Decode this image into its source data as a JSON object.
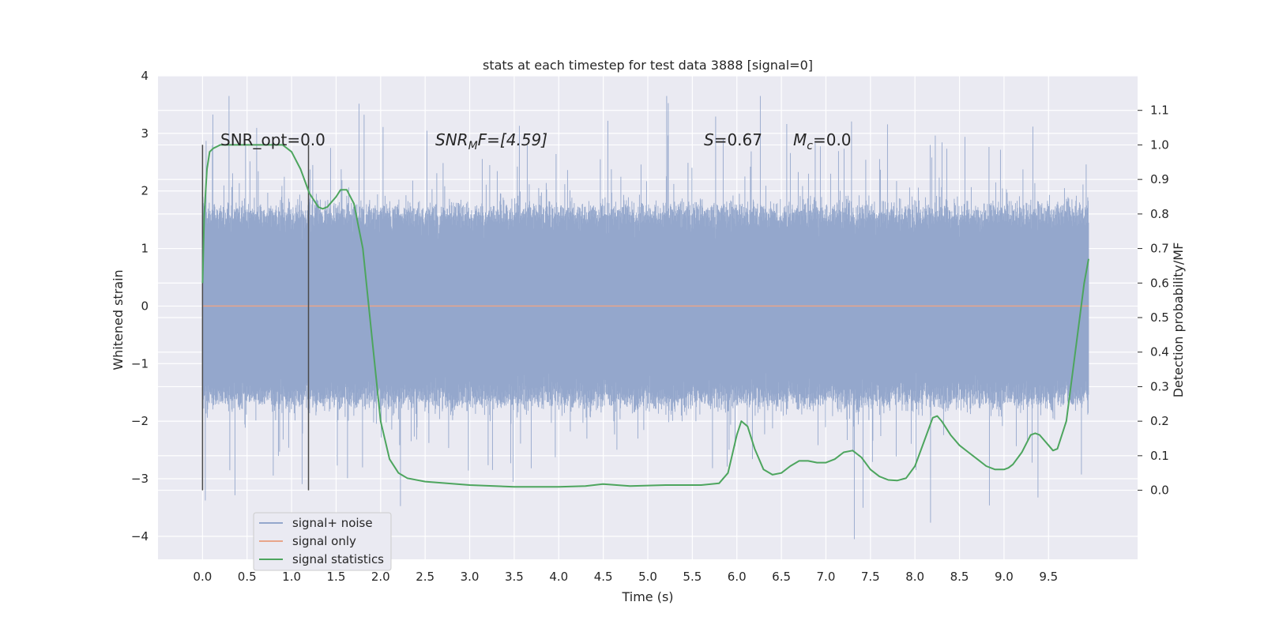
{
  "chart_data": {
    "type": "line",
    "title": "stats at each timestep for test data 3888 [signal=0]",
    "xlabel": "Time (s)",
    "ylabel": "Whitened strain",
    "y2label": "Detection probability/MF",
    "xlim": [
      -0.5,
      10.5
    ],
    "ylim": [
      -4.4,
      4.0
    ],
    "y2lim": [
      -0.2,
      1.2
    ],
    "x_ticks": [
      "0.0",
      "0.5",
      "1.0",
      "1.5",
      "2.0",
      "2.5",
      "3.0",
      "3.5",
      "4.0",
      "4.5",
      "5.0",
      "5.5",
      "6.0",
      "6.5",
      "7.0",
      "7.5",
      "8.0",
      "8.5",
      "9.0",
      "9.5"
    ],
    "y_ticks": [
      "4",
      "3",
      "2",
      "1",
      "0",
      "−1",
      "−2",
      "−3",
      "−4"
    ],
    "y2_ticks": [
      "1.1",
      "1.0",
      "0.9",
      "0.8",
      "0.7",
      "0.6",
      "0.5",
      "0.4",
      "0.3",
      "0.2",
      "0.1",
      "0.0"
    ],
    "grid": true,
    "legend_placement": "lower-left",
    "annotations": {
      "snr_opt": "SNR_opt=0.0",
      "snr_mf_base": "SNR",
      "snr_mf_sub": "M",
      "snr_mf_rest": "F=[4.59]",
      "s_var": "S",
      "s_rest": "=0.67",
      "mc_var": "M",
      "mc_sub": "c",
      "mc_rest": "=0.0"
    },
    "vlines_x": [
      0.0,
      1.19
    ],
    "vlines_y_range": [
      -3.2,
      2.8
    ],
    "series": [
      {
        "name": "signal+ noise",
        "color": "#94a7cc",
        "duration": 9.95,
        "typical_amplitude": 1.6,
        "peak_max": 3.65,
        "peak_min": -4.05
      },
      {
        "name": "signal only",
        "color": "#e8a58a",
        "x": [
          0.0,
          9.95
        ],
        "y": [
          0.0,
          0.0
        ]
      },
      {
        "name": "signal statistics",
        "color": "#4da55e",
        "axis": "right",
        "x": [
          0.0,
          0.02,
          0.05,
          0.08,
          0.12,
          0.16,
          0.2,
          0.3,
          0.5,
          0.7,
          0.9,
          1.0,
          1.1,
          1.2,
          1.3,
          1.35,
          1.4,
          1.5,
          1.55,
          1.62,
          1.7,
          1.8,
          1.9,
          2.0,
          2.1,
          2.2,
          2.3,
          2.5,
          3.0,
          3.5,
          4.0,
          4.3,
          4.5,
          4.8,
          5.2,
          5.6,
          5.8,
          5.9,
          6.0,
          6.05,
          6.12,
          6.2,
          6.3,
          6.4,
          6.5,
          6.6,
          6.7,
          6.8,
          6.9,
          7.0,
          7.1,
          7.2,
          7.3,
          7.4,
          7.5,
          7.6,
          7.7,
          7.8,
          7.9,
          8.0,
          8.1,
          8.2,
          8.25,
          8.3,
          8.4,
          8.5,
          8.6,
          8.7,
          8.8,
          8.9,
          9.0,
          9.05,
          9.1,
          9.2,
          9.3,
          9.35,
          9.4,
          9.5,
          9.55,
          9.6,
          9.7,
          9.8,
          9.9,
          9.95
        ],
        "y": [
          0.6,
          0.8,
          0.93,
          0.98,
          0.99,
          0.995,
          1.0,
          1.0,
          1.0,
          1.0,
          1.0,
          0.98,
          0.93,
          0.86,
          0.82,
          0.815,
          0.82,
          0.85,
          0.87,
          0.87,
          0.83,
          0.7,
          0.45,
          0.2,
          0.09,
          0.05,
          0.035,
          0.025,
          0.015,
          0.01,
          0.01,
          0.012,
          0.018,
          0.012,
          0.015,
          0.015,
          0.02,
          0.05,
          0.16,
          0.2,
          0.185,
          0.12,
          0.06,
          0.045,
          0.05,
          0.07,
          0.085,
          0.085,
          0.08,
          0.08,
          0.09,
          0.11,
          0.115,
          0.095,
          0.06,
          0.04,
          0.03,
          0.028,
          0.035,
          0.07,
          0.14,
          0.21,
          0.215,
          0.2,
          0.16,
          0.13,
          0.11,
          0.09,
          0.07,
          0.06,
          0.06,
          0.065,
          0.075,
          0.11,
          0.16,
          0.165,
          0.16,
          0.13,
          0.115,
          0.12,
          0.2,
          0.4,
          0.6,
          0.67
        ]
      }
    ]
  }
}
